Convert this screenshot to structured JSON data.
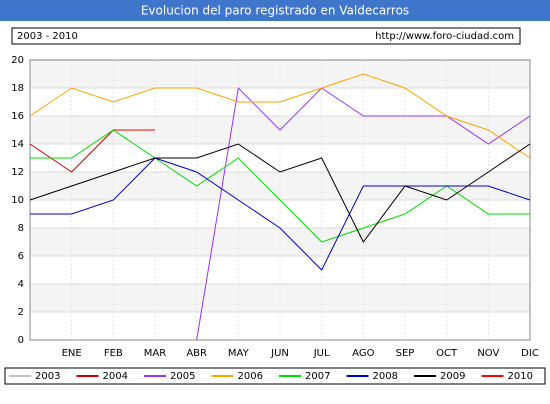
{
  "chart_data": {
    "type": "line",
    "title": "Evolucion del paro registrado en Valdecarros",
    "subtitle": "2003 - 2010",
    "source": "http://www.foro-ciudad.com",
    "categories": [
      null,
      "ENE",
      "FEB",
      "MAR",
      "ABR",
      "MAY",
      "JUN",
      "JUL",
      "AGO",
      "SEP",
      "OCT",
      "NOV",
      "DIC"
    ],
    "ylim": [
      0,
      20
    ],
    "yticks": [
      0,
      2,
      4,
      6,
      8,
      10,
      12,
      14,
      16,
      18,
      20
    ],
    "grid": true,
    "series": [
      {
        "name": "2003",
        "color": "#c0c0c0",
        "values": [
          null,
          null,
          null,
          null,
          null,
          null,
          null,
          null,
          null,
          null,
          null,
          null,
          null
        ]
      },
      {
        "name": "2004",
        "color": "#cc0000",
        "values": [
          14,
          12,
          15,
          null,
          null,
          null,
          null,
          null,
          null,
          null,
          null,
          null,
          null
        ]
      },
      {
        "name": "2005",
        "color": "#9933ff",
        "values": [
          null,
          null,
          null,
          null,
          0,
          18,
          15,
          18,
          16,
          16,
          16,
          14,
          16
        ]
      },
      {
        "name": "2006",
        "color": "#ffa500",
        "values": [
          16,
          18,
          17,
          18,
          18,
          17,
          17,
          18,
          19,
          18,
          16,
          15,
          13
        ]
      },
      {
        "name": "2007",
        "color": "#00dd00",
        "values": [
          13,
          13,
          15,
          13,
          11,
          13,
          10,
          7,
          8,
          9,
          11,
          9,
          9
        ]
      },
      {
        "name": "2008",
        "color": "#0000cc",
        "values": [
          9,
          9,
          10,
          13,
          12,
          10,
          8,
          5,
          11,
          11,
          11,
          11,
          10
        ]
      },
      {
        "name": "2009",
        "color": "#000000",
        "values": [
          10,
          11,
          12,
          13,
          13,
          14,
          12,
          13,
          7,
          11,
          10,
          12,
          14
        ]
      },
      {
        "name": "2010",
        "color": "#ff0000",
        "values": [
          null,
          null,
          15,
          15,
          null,
          null,
          null,
          null,
          null,
          null,
          null,
          null,
          null
        ]
      }
    ]
  }
}
